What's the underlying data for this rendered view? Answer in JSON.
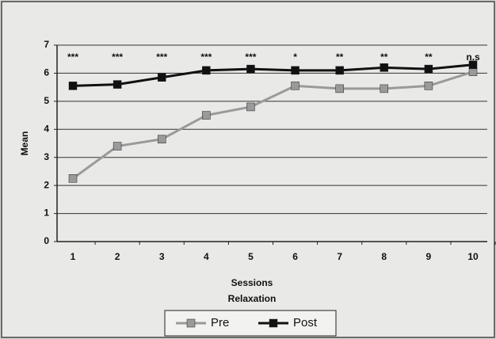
{
  "chart_data": {
    "type": "line",
    "y_label": "Mean",
    "x_label": "Sessions",
    "x_sublabel": "Relaxation",
    "categories": [
      "1",
      "2",
      "3",
      "4",
      "5",
      "6",
      "7",
      "8",
      "9",
      "10"
    ],
    "annotations": [
      "***",
      "***",
      "***",
      "***",
      "***",
      "*",
      "**",
      "**",
      "**",
      "n.s"
    ],
    "series": [
      {
        "name": "Pre",
        "color": "#9a9a9a",
        "values": [
          2.25,
          3.4,
          3.65,
          4.5,
          4.8,
          5.55,
          5.45,
          5.45,
          5.55,
          6.05
        ]
      },
      {
        "name": "Post",
        "color": "#111111",
        "values": [
          5.55,
          5.6,
          5.85,
          6.1,
          6.15,
          6.1,
          6.1,
          6.2,
          6.15,
          6.3
        ]
      }
    ],
    "ylim": [
      0,
      7
    ],
    "yticks": [
      0,
      1,
      2,
      3,
      4,
      5,
      6,
      7
    ],
    "grid": true,
    "legend": "bottom"
  }
}
